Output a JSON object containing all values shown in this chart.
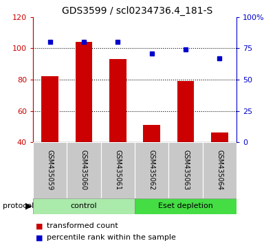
{
  "title": "GDS3599 / scl0234736.4_181-S",
  "samples": [
    "GSM435059",
    "GSM435060",
    "GSM435061",
    "GSM435062",
    "GSM435063",
    "GSM435064"
  ],
  "red_values": [
    82,
    104,
    93,
    51,
    79,
    46
  ],
  "blue_values": [
    80,
    80,
    80,
    71,
    74,
    67
  ],
  "ylim_left": [
    40,
    120
  ],
  "ylim_right": [
    0,
    100
  ],
  "yticks_left": [
    40,
    60,
    80,
    100,
    120
  ],
  "yticks_right": [
    0,
    25,
    50,
    75,
    100
  ],
  "yticklabels_right": [
    "0",
    "25",
    "50",
    "75",
    "100%"
  ],
  "grid_values": [
    60,
    80,
    100
  ],
  "bar_color": "#CC0000",
  "dot_color": "#0000CC",
  "bar_width": 0.5,
  "group_control_color": "#AAEAAA",
  "group_eset_color": "#44DD44",
  "group_control_label": "control",
  "group_eset_label": "Eset depletion",
  "control_indices": [
    0,
    1,
    2
  ],
  "eset_indices": [
    3,
    4,
    5
  ],
  "protocol_label": "protocol",
  "legend_red_label": "transformed count",
  "legend_blue_label": "percentile rank within the sample",
  "title_fontsize": 10,
  "tick_fontsize": 8,
  "sample_fontsize": 7,
  "proto_fontsize": 8,
  "legend_fontsize": 8
}
